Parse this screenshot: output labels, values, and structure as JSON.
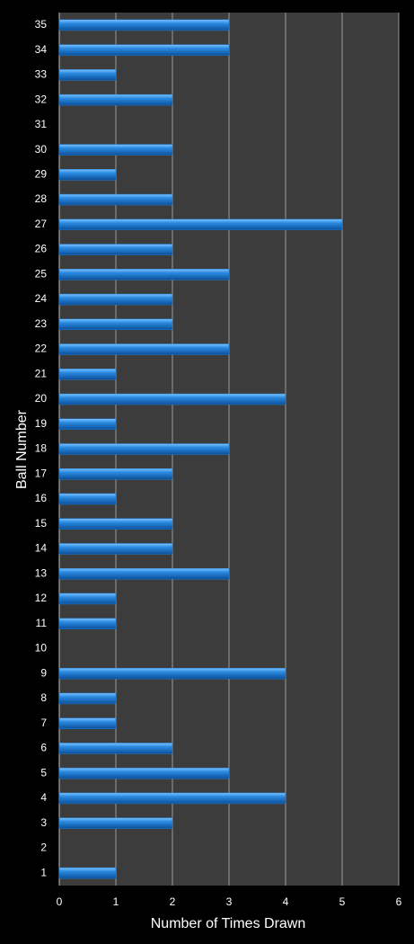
{
  "chart_data": {
    "type": "bar",
    "orientation": "horizontal",
    "xlabel": "Number of Times Drawn",
    "ylabel": "Ball Number",
    "categories": [
      "1",
      "2",
      "3",
      "4",
      "5",
      "6",
      "7",
      "8",
      "9",
      "10",
      "11",
      "12",
      "13",
      "14",
      "15",
      "16",
      "17",
      "18",
      "19",
      "20",
      "21",
      "22",
      "23",
      "24",
      "25",
      "26",
      "27",
      "28",
      "29",
      "30",
      "31",
      "32",
      "33",
      "34",
      "35"
    ],
    "values": [
      1,
      0,
      2,
      4,
      3,
      2,
      1,
      1,
      4,
      0,
      1,
      1,
      3,
      2,
      2,
      1,
      2,
      3,
      1,
      4,
      1,
      3,
      2,
      2,
      3,
      2,
      5,
      2,
      1,
      2,
      0,
      2,
      1,
      3,
      3
    ],
    "color": "#1f7fd6",
    "xlim": [
      0,
      6
    ],
    "xticks": [
      0,
      1,
      2,
      3,
      4,
      5,
      6
    ],
    "grid": true
  }
}
